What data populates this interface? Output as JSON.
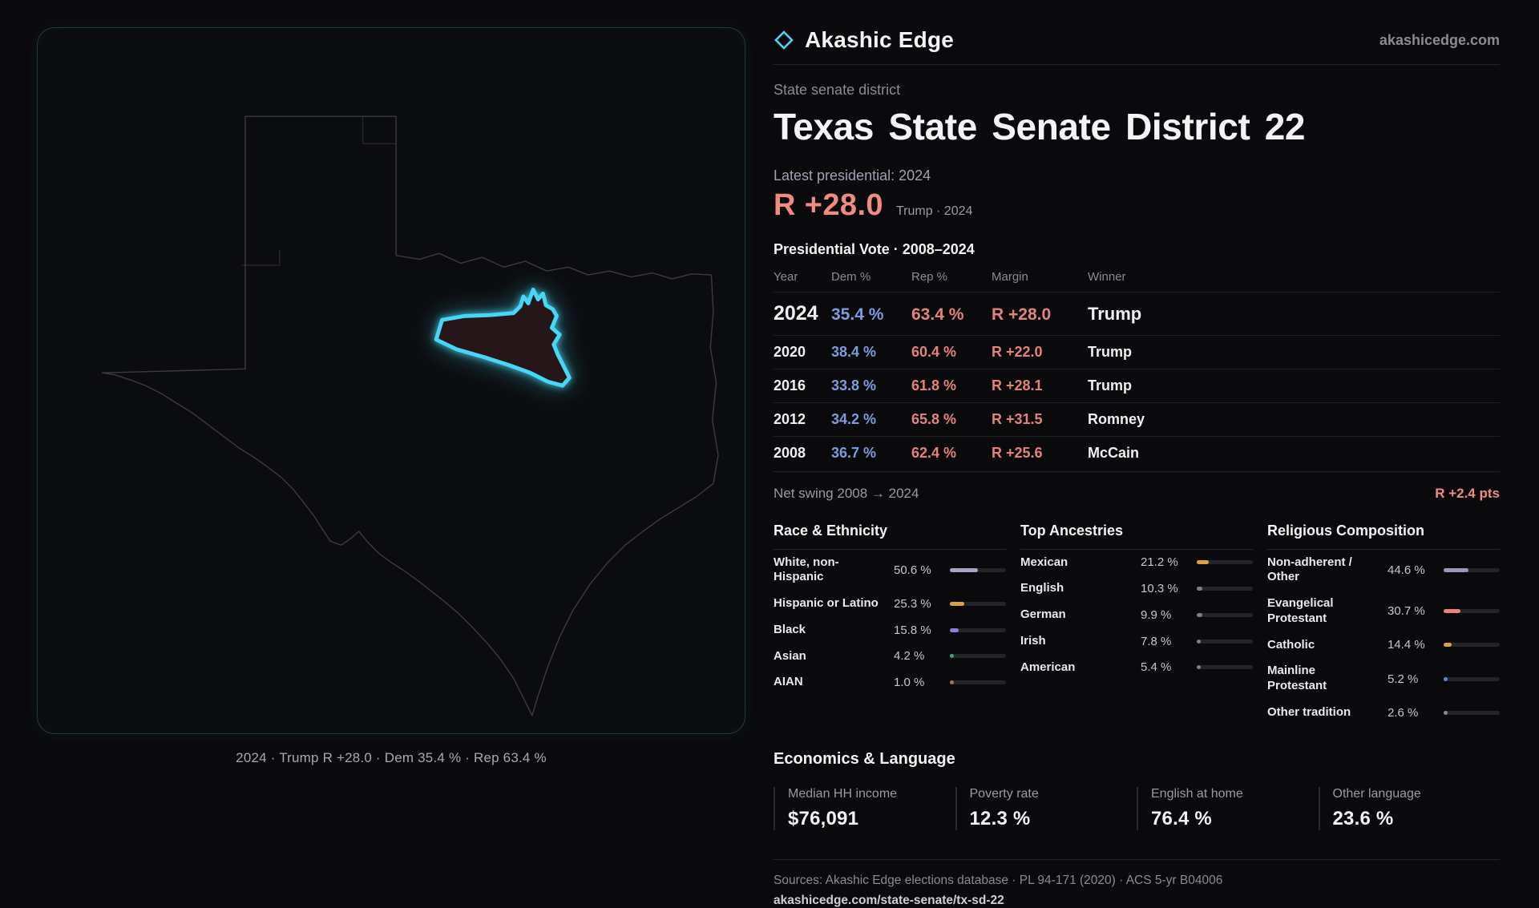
{
  "brand": {
    "name": "Akashic Edge",
    "domain": "akashicedge.com",
    "accent_cyan": "#47d7f4",
    "accent_red": "#ef8b80",
    "accent_blue": "#7b9ddd"
  },
  "header": {
    "kicker": "State senate district",
    "title": "Texas State Senate District 22",
    "latest_label": "Latest presidential: 2024",
    "latest_margin": "R +28.0",
    "latest_detail": "Trump · 2024"
  },
  "map": {
    "caption": "2024 · Trump R +28.0 · Dem 35.4 % · Rep 63.4 %"
  },
  "vote_table": {
    "title": "Presidential Vote · 2008–2024",
    "columns": [
      "Year",
      "Dem %",
      "Rep %",
      "Margin",
      "Winner"
    ],
    "rows": [
      {
        "year": "2024",
        "dem": "35.4 %",
        "rep": "63.4 %",
        "margin": "R +28.0",
        "winner": "Trump",
        "featured": true
      },
      {
        "year": "2020",
        "dem": "38.4 %",
        "rep": "60.4 %",
        "margin": "R +22.0",
        "winner": "Trump",
        "featured": false
      },
      {
        "year": "2016",
        "dem": "33.8 %",
        "rep": "61.8 %",
        "margin": "R +28.1",
        "winner": "Trump",
        "featured": false
      },
      {
        "year": "2012",
        "dem": "34.2 %",
        "rep": "65.8 %",
        "margin": "R +31.5",
        "winner": "Romney",
        "featured": false
      },
      {
        "year": "2008",
        "dem": "36.7 %",
        "rep": "62.4 %",
        "margin": "R +25.6",
        "winner": "McCain",
        "featured": false
      }
    ]
  },
  "net_swing": {
    "label": "Net swing 2008 → 2024",
    "value": "R +2.4 pts"
  },
  "demographics": [
    {
      "title": "Race & Ethnicity",
      "rows": [
        {
          "label": "White, non-Hispanic",
          "value": "50.6 %",
          "pct": 50.6,
          "color": "#a8a4c4"
        },
        {
          "label": "Hispanic or Latino",
          "value": "25.3 %",
          "pct": 25.3,
          "color": "#d9a43e"
        },
        {
          "label": "Black",
          "value": "15.8 %",
          "pct": 15.8,
          "color": "#8f7ce4"
        },
        {
          "label": "Asian",
          "value": "4.2 %",
          "pct": 4.2,
          "color": "#34a97c"
        },
        {
          "label": "AIAN",
          "value": "1.0 %",
          "pct": 1.0,
          "color": "#b06a50"
        }
      ]
    },
    {
      "title": "Top Ancestries",
      "rows": [
        {
          "label": "Mexican",
          "value": "21.2 %",
          "pct": 21.2,
          "color": "#d9a43e"
        },
        {
          "label": "English",
          "value": "10.3 %",
          "pct": 10.3,
          "color": "#7d7d85"
        },
        {
          "label": "German",
          "value": "9.9 %",
          "pct": 9.9,
          "color": "#7d7d85"
        },
        {
          "label": "Irish",
          "value": "7.8 %",
          "pct": 7.8,
          "color": "#7d7d85"
        },
        {
          "label": "American",
          "value": "5.4 %",
          "pct": 5.4,
          "color": "#7d7d85"
        }
      ]
    },
    {
      "title": "Religious Composition",
      "rows": [
        {
          "label": "Non-adherent / Other",
          "value": "44.6 %",
          "pct": 44.6,
          "color": "#9c98b8"
        },
        {
          "label": "Evangelical Protestant",
          "value": "30.7 %",
          "pct": 30.7,
          "color": "#e8837a"
        },
        {
          "label": "Catholic",
          "value": "14.4 %",
          "pct": 14.4,
          "color": "#d9a43e"
        },
        {
          "label": "Mainline Protestant",
          "value": "5.2 %",
          "pct": 5.2,
          "color": "#5b86dc"
        },
        {
          "label": "Other tradition",
          "value": "2.6 %",
          "pct": 2.6,
          "color": "#8a8a92"
        }
      ]
    }
  ],
  "economics": {
    "title": "Economics & Language",
    "stats": [
      {
        "label": "Median HH income",
        "value": "$76,091"
      },
      {
        "label": "Poverty rate",
        "value": "12.3 %"
      },
      {
        "label": "English at home",
        "value": "76.4 %"
      },
      {
        "label": "Other language",
        "value": "23.6 %"
      }
    ]
  },
  "footer": {
    "sources": "Sources: Akashic Edge elections database · PL 94-171 (2020) · ACS 5-yr B04006",
    "link": "akashicedge.com/state-senate/tx-sd-22"
  }
}
